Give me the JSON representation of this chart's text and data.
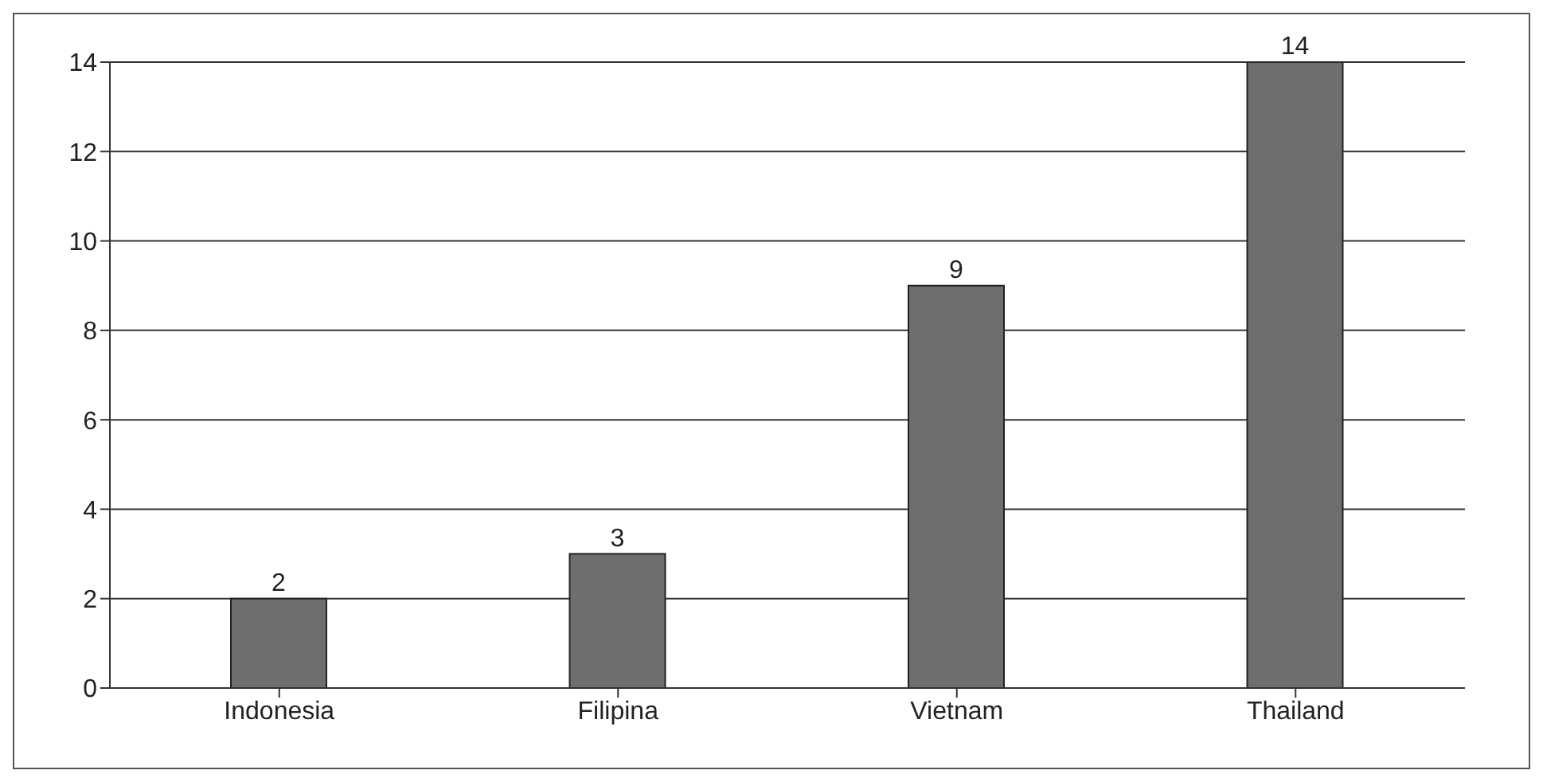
{
  "chart_data": {
    "type": "bar",
    "categories": [
      "Indonesia",
      "Filipina",
      "Vietnam",
      "Thailand"
    ],
    "values": [
      2,
      3,
      9,
      14
    ],
    "color": "#6e6e6e",
    "ylim": [
      0,
      14
    ],
    "yticks": [
      0,
      2,
      4,
      6,
      8,
      10,
      12,
      14
    ],
    "grid": "y",
    "data_labels": true
  }
}
